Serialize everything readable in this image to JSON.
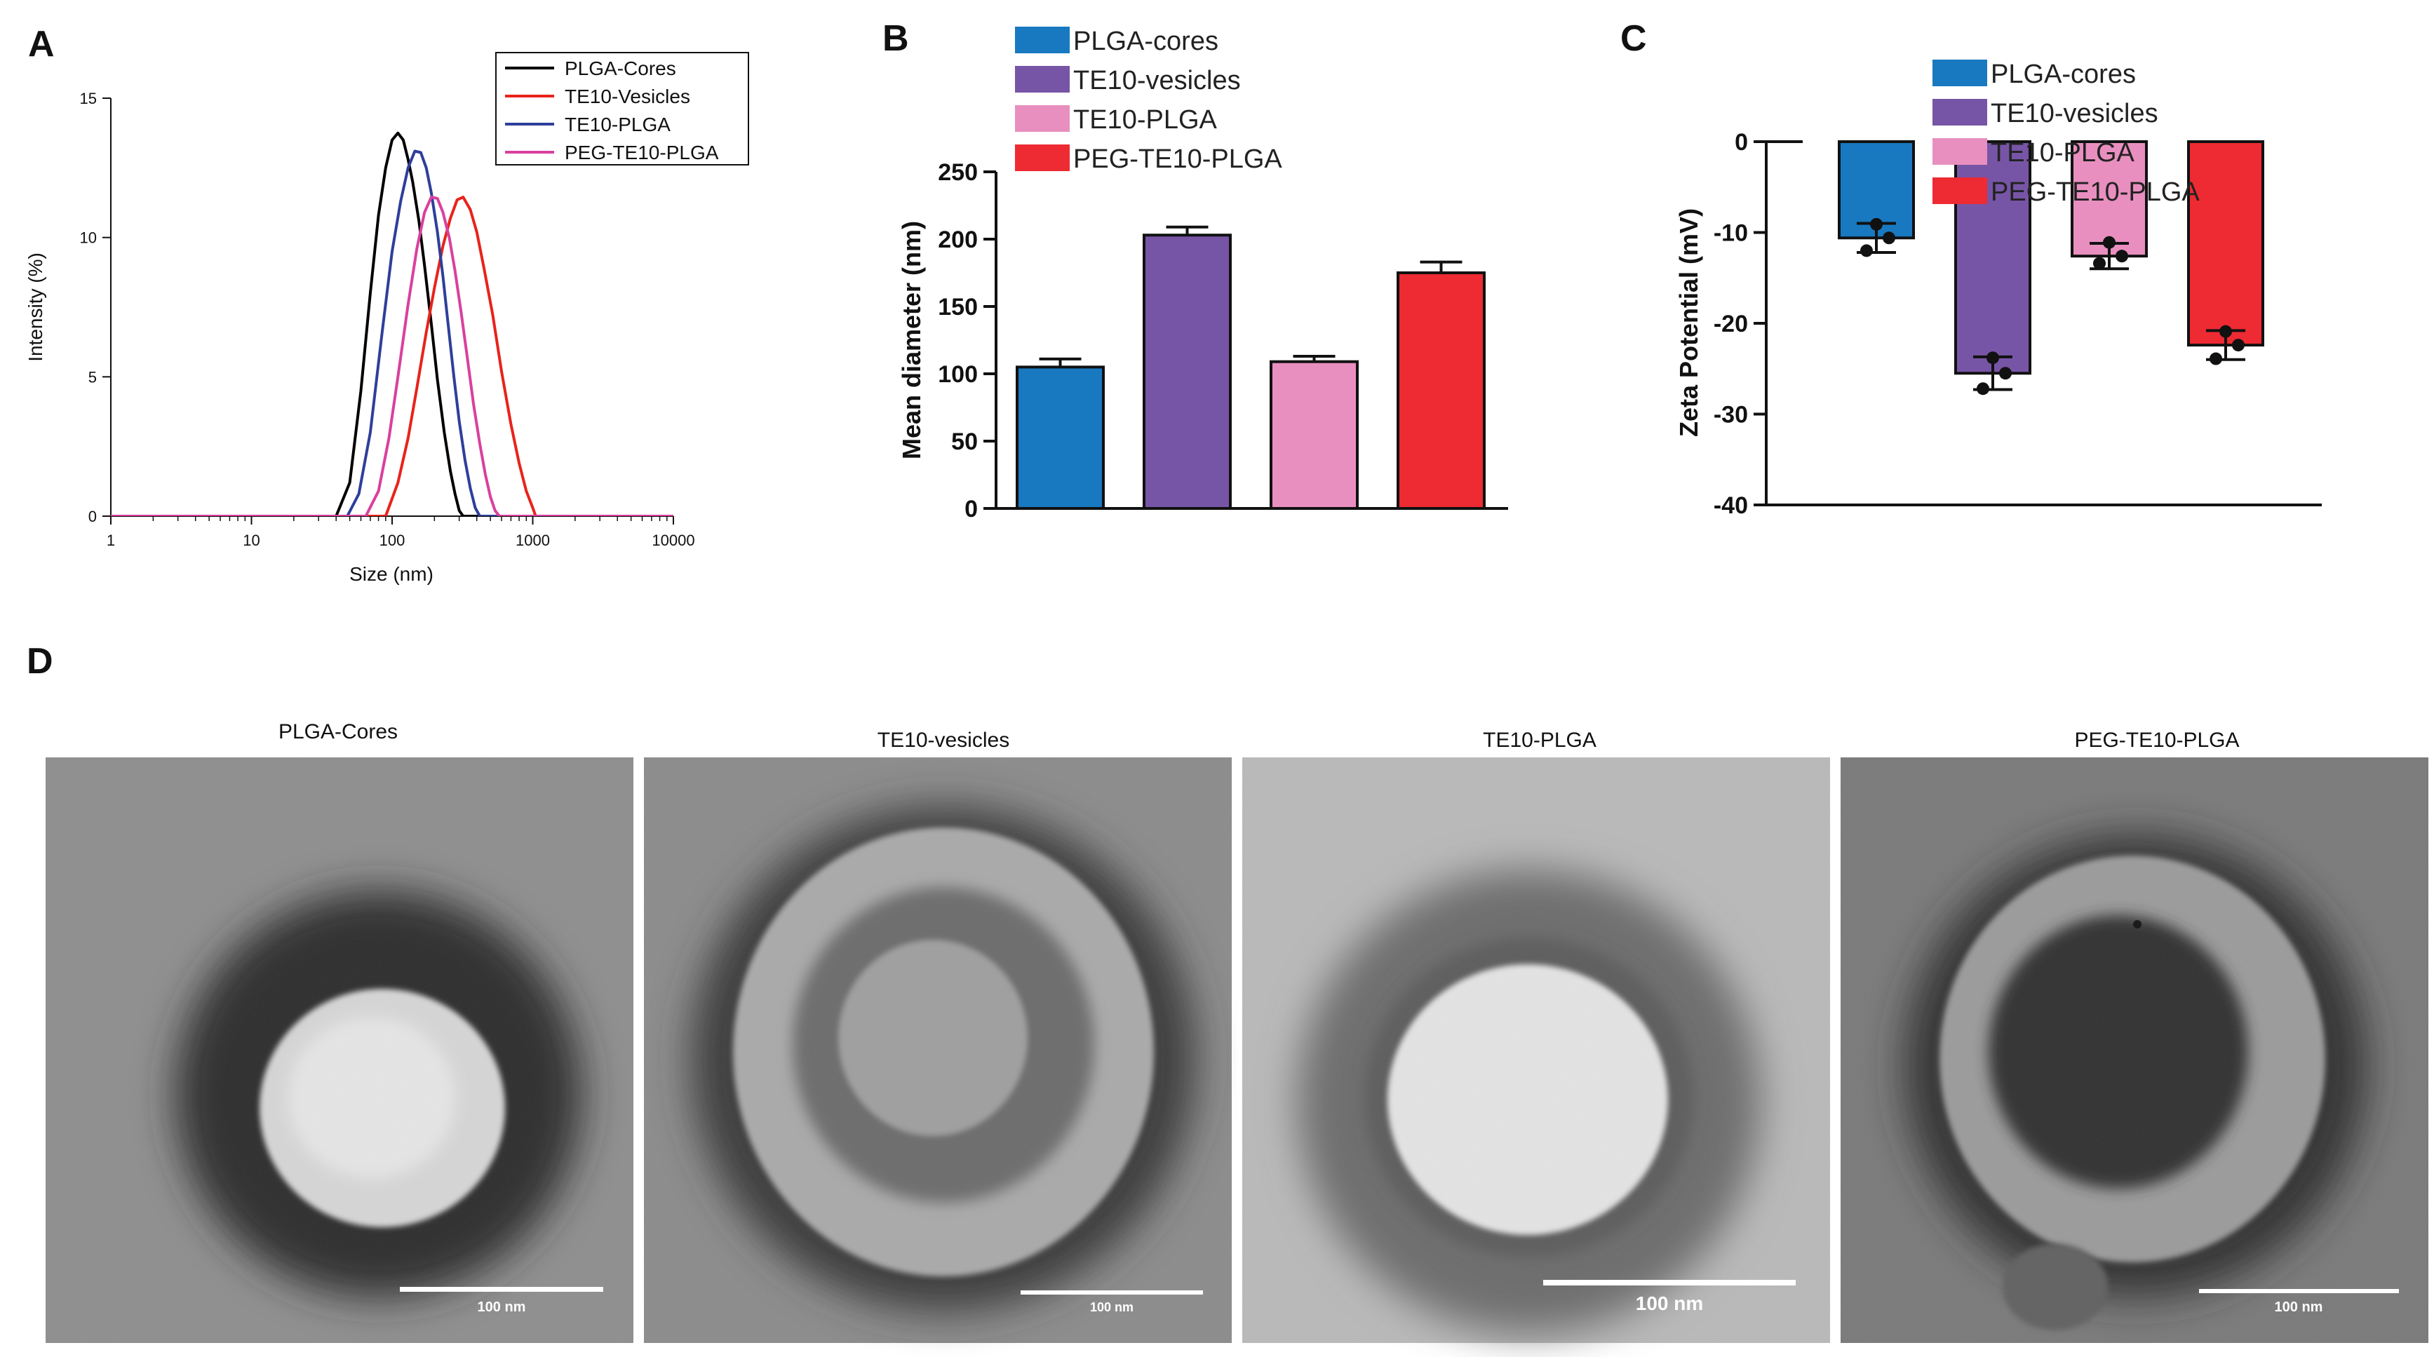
{
  "panel_labels": {
    "a": "A",
    "b": "B",
    "c": "C",
    "d": "D"
  },
  "chart_data": [
    {
      "type": "line",
      "xscale": "log",
      "xlim": [
        1,
        10000
      ],
      "ylim": [
        0,
        15
      ],
      "xticks": [
        1,
        10,
        100,
        1000,
        10000
      ],
      "xtick_labels": [
        "1",
        "10",
        "100",
        "1000",
        "10000"
      ],
      "yticks": [
        0,
        5,
        10,
        15
      ],
      "ytick_labels": [
        "0",
        "5",
        "10",
        "15"
      ],
      "xlabel": "Size (nm)",
      "ylabel": "Intensity (%)",
      "legend_position": "top-right",
      "series": [
        {
          "name": "PLGA-Cores",
          "color": "#000000",
          "x": [
            1,
            40,
            50,
            60,
            70,
            80,
            90,
            100,
            110,
            120,
            130,
            140,
            155,
            170,
            190,
            210,
            235,
            260,
            280,
            300,
            320,
            10000
          ],
          "y": [
            0,
            0,
            1.2,
            4.5,
            8.0,
            10.8,
            12.5,
            13.5,
            13.75,
            13.5,
            12.8,
            12.0,
            10.6,
            9.0,
            6.9,
            4.9,
            3.0,
            1.6,
            0.8,
            0.2,
            0,
            0
          ]
        },
        {
          "name": "TE10-Vesicles",
          "color": "#e8231c",
          "x": [
            1,
            90,
            110,
            130,
            150,
            175,
            200,
            230,
            260,
            290,
            320,
            360,
            400,
            450,
            520,
            600,
            700,
            800,
            900,
            1000,
            1050,
            10000
          ],
          "y": [
            0,
            0,
            1.2,
            2.8,
            4.6,
            6.6,
            8.2,
            9.7,
            10.7,
            11.35,
            11.45,
            11.0,
            10.2,
            8.9,
            7.2,
            5.2,
            3.3,
            1.9,
            0.9,
            0.3,
            0,
            0
          ]
        },
        {
          "name": "TE10-PLGA",
          "color": "#2e3f9a",
          "x": [
            1,
            48,
            58,
            70,
            85,
            100,
            115,
            130,
            145,
            160,
            175,
            190,
            210,
            230,
            250,
            275,
            300,
            330,
            360,
            390,
            420,
            10000
          ],
          "y": [
            0,
            0,
            0.8,
            3.0,
            6.6,
            9.5,
            11.3,
            12.5,
            13.1,
            13.05,
            12.5,
            11.6,
            10.2,
            8.6,
            6.9,
            5.0,
            3.4,
            2.0,
            1.0,
            0.3,
            0,
            0
          ]
        },
        {
          "name": "PEG-TE10-PLGA",
          "color": "#d9409e",
          "x": [
            1,
            65,
            80,
            95,
            110,
            130,
            150,
            170,
            190,
            210,
            230,
            255,
            280,
            310,
            340,
            380,
            420,
            460,
            500,
            540,
            580,
            10000
          ],
          "y": [
            0,
            0,
            0.9,
            2.8,
            5.0,
            7.6,
            9.6,
            10.9,
            11.45,
            11.4,
            10.9,
            10.0,
            8.8,
            7.3,
            5.8,
            4.0,
            2.6,
            1.5,
            0.7,
            0.2,
            0,
            0
          ]
        }
      ]
    },
    {
      "type": "bar",
      "categories": [
        "PLGA-cores",
        "TE10-vesicles",
        "TE10-PLGA",
        "PEG-TE10-PLGA"
      ],
      "values": [
        105,
        203,
        109,
        175
      ],
      "errors": [
        6,
        6,
        4,
        8
      ],
      "colors": [
        "#1879c0",
        "#7755a6",
        "#e98fbf",
        "#ee2a32"
      ],
      "ylabel": "Mean diameter (nm)",
      "ylim": [
        0,
        250
      ],
      "yticks": [
        0,
        50,
        100,
        150,
        200,
        250
      ],
      "ytick_labels": [
        "0",
        "50",
        "100",
        "150",
        "200",
        "250"
      ],
      "legend_position": "top-left"
    },
    {
      "type": "bar",
      "categories": [
        "PLGA-cores",
        "TE10-vesicles",
        "TE10-PLGA",
        "PEG-TE10-PLGA"
      ],
      "values": [
        -10.6,
        -25.5,
        -12.6,
        -22.4
      ],
      "errors": [
        1.6,
        1.8,
        1.4,
        1.6
      ],
      "points": [
        [
          -9.1,
          -10.6,
          -12.0
        ],
        [
          -23.8,
          -25.5,
          -27.2
        ],
        [
          -11.1,
          -12.6,
          -13.4
        ],
        [
          -20.9,
          -22.4,
          -23.9
        ]
      ],
      "colors": [
        "#1879c0",
        "#7755a6",
        "#e98fbf",
        "#ee2a32"
      ],
      "ylabel": "Zeta Potential (mV)",
      "ylim": [
        -40,
        0
      ],
      "yticks": [
        0,
        -10,
        -20,
        -30,
        -40
      ],
      "ytick_labels": [
        "0",
        "-10",
        "-20",
        "-30",
        "-40"
      ],
      "legend_position": "top-right"
    }
  ],
  "micrographs": [
    {
      "title": "PLGA-Cores",
      "scale_label": "100 nm"
    },
    {
      "title": "TE10-vesicles",
      "scale_label": "100 nm"
    },
    {
      "title": "TE10-PLGA",
      "scale_label": "100 nm"
    },
    {
      "title": "PEG-TE10-PLGA",
      "scale_label": "100 nm"
    }
  ]
}
